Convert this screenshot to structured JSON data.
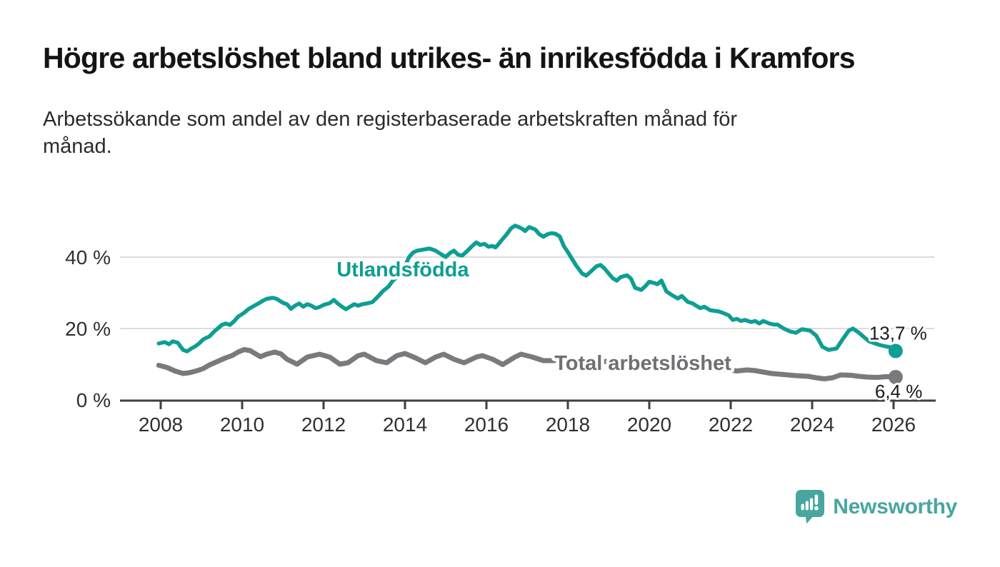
{
  "header": {
    "title": "Högre arbetslöshet bland utrikes- än inrikesfödda i Kramfors",
    "subtitle_line1": "Arbetssökande som andel av den registerbaserade arbetskraften månad för",
    "subtitle_line2": "månad."
  },
  "colors": {
    "foreign_born_line": "#0e9e93",
    "total_line": "#7a7a7e",
    "total_label": "#6f6f74",
    "end_label_text": "#1a1a1a",
    "gridline": "#dcdcdc",
    "axis": "#3f3f3f",
    "axis_text": "#303030",
    "brand_teal": "#48a69e"
  },
  "chart_data": {
    "type": "line",
    "title": "",
    "xlabel": "",
    "ylabel": "",
    "grid": "horizontal-only",
    "legend_position": "inline-labels-on-lines",
    "x_axis": {
      "range": [
        2007,
        2027
      ],
      "ticks": [
        2008,
        2010,
        2012,
        2014,
        2016,
        2018,
        2020,
        2022,
        2024,
        2026
      ],
      "tick_labels": [
        "2008",
        "2010",
        "2012",
        "2014",
        "2016",
        "2018",
        "2020",
        "2022",
        "2024",
        "2026"
      ]
    },
    "y_axis": {
      "range": [
        0,
        52
      ],
      "ticks": [
        0,
        20,
        40
      ],
      "tick_labels": [
        "0 %",
        "20 %",
        "40 %"
      ]
    },
    "series": [
      {
        "name": "Utlandsfödda",
        "color": "#0e9e93",
        "label_color": "#0e9e93",
        "label_pos": [
          2012.32,
          34.6
        ],
        "end_value": 13.7,
        "end_label": "13,7 %",
        "line_width": 5.5,
        "points": [
          [
            2007.95,
            15.8
          ],
          [
            2008.1,
            16.2
          ],
          [
            2008.2,
            15.6
          ],
          [
            2008.3,
            16.4
          ],
          [
            2008.42,
            16
          ],
          [
            2008.55,
            14
          ],
          [
            2008.65,
            13.6
          ],
          [
            2008.75,
            14.4
          ],
          [
            2008.85,
            15
          ],
          [
            2008.95,
            15.9
          ],
          [
            2009.05,
            17
          ],
          [
            2009.2,
            17.8
          ],
          [
            2009.3,
            19
          ],
          [
            2009.4,
            20
          ],
          [
            2009.5,
            21
          ],
          [
            2009.6,
            21.4
          ],
          [
            2009.7,
            21
          ],
          [
            2009.8,
            22
          ],
          [
            2009.9,
            23.3
          ],
          [
            2010.05,
            24.4
          ],
          [
            2010.15,
            25.4
          ],
          [
            2010.3,
            26.4
          ],
          [
            2010.4,
            27
          ],
          [
            2010.5,
            27.7
          ],
          [
            2010.6,
            28.3
          ],
          [
            2010.75,
            28.6
          ],
          [
            2010.85,
            28.3
          ],
          [
            2011,
            27.2
          ],
          [
            2011.1,
            26.8
          ],
          [
            2011.2,
            25.5
          ],
          [
            2011.3,
            26.4
          ],
          [
            2011.4,
            27
          ],
          [
            2011.5,
            26.1
          ],
          [
            2011.6,
            26.8
          ],
          [
            2011.7,
            26.4
          ],
          [
            2011.8,
            25.7
          ],
          [
            2011.9,
            26
          ],
          [
            2012,
            26.6
          ],
          [
            2012.15,
            27.1
          ],
          [
            2012.25,
            28
          ],
          [
            2012.35,
            27
          ],
          [
            2012.45,
            26.1
          ],
          [
            2012.55,
            25.4
          ],
          [
            2012.65,
            26.1
          ],
          [
            2012.75,
            26.8
          ],
          [
            2012.85,
            26.4
          ],
          [
            2012.95,
            26.8
          ],
          [
            2013.1,
            27.1
          ],
          [
            2013.2,
            27.4
          ],
          [
            2013.35,
            29.1
          ],
          [
            2013.45,
            30.4
          ],
          [
            2013.6,
            31.8
          ],
          [
            2013.7,
            33.4
          ],
          [
            2013.8,
            34.4
          ],
          [
            2013.9,
            35.6
          ],
          [
            2014,
            37.5
          ],
          [
            2014.1,
            40
          ],
          [
            2014.2,
            41.3
          ],
          [
            2014.3,
            41.8
          ],
          [
            2014.45,
            42.1
          ],
          [
            2014.6,
            42.4
          ],
          [
            2014.75,
            41.8
          ],
          [
            2014.9,
            40.7
          ],
          [
            2015,
            40
          ],
          [
            2015.1,
            41.1
          ],
          [
            2015.2,
            41.8
          ],
          [
            2015.3,
            40.7
          ],
          [
            2015.4,
            40.4
          ],
          [
            2015.5,
            41.4
          ],
          [
            2015.65,
            43.1
          ],
          [
            2015.75,
            44.1
          ],
          [
            2015.85,
            43.4
          ],
          [
            2015.95,
            43.7
          ],
          [
            2016.05,
            42.9
          ],
          [
            2016.15,
            43.1
          ],
          [
            2016.22,
            42.7
          ],
          [
            2016.28,
            43.4
          ],
          [
            2016.35,
            44.4
          ],
          [
            2016.5,
            46.4
          ],
          [
            2016.6,
            48
          ],
          [
            2016.7,
            48.8
          ],
          [
            2016.8,
            48.4
          ],
          [
            2016.88,
            47.9
          ],
          [
            2016.95,
            47.3
          ],
          [
            2017.05,
            48.4
          ],
          [
            2017.12,
            48.1
          ],
          [
            2017.2,
            47.7
          ],
          [
            2017.3,
            46.4
          ],
          [
            2017.4,
            45.7
          ],
          [
            2017.5,
            46.4
          ],
          [
            2017.6,
            46.7
          ],
          [
            2017.7,
            46.5
          ],
          [
            2017.8,
            45.8
          ],
          [
            2017.9,
            43.1
          ],
          [
            2018,
            41.4
          ],
          [
            2018.2,
            37.7
          ],
          [
            2018.35,
            35.4
          ],
          [
            2018.45,
            34.8
          ],
          [
            2018.55,
            35.8
          ],
          [
            2018.7,
            37.4
          ],
          [
            2018.8,
            37.8
          ],
          [
            2018.9,
            36.8
          ],
          [
            2019.1,
            34.1
          ],
          [
            2019.2,
            33.4
          ],
          [
            2019.3,
            34.4
          ],
          [
            2019.45,
            34.9
          ],
          [
            2019.55,
            34
          ],
          [
            2019.65,
            31.4
          ],
          [
            2019.8,
            30.8
          ],
          [
            2019.9,
            31.8
          ],
          [
            2020,
            33.1
          ],
          [
            2020.1,
            32.8
          ],
          [
            2020.2,
            32.4
          ],
          [
            2020.3,
            33.4
          ],
          [
            2020.42,
            30.4
          ],
          [
            2020.55,
            29.4
          ],
          [
            2020.7,
            28.4
          ],
          [
            2020.8,
            29.1
          ],
          [
            2020.95,
            27.4
          ],
          [
            2021.05,
            27.1
          ],
          [
            2021.25,
            25.7
          ],
          [
            2021.35,
            26.1
          ],
          [
            2021.5,
            25.1
          ],
          [
            2021.7,
            24.8
          ],
          [
            2021.8,
            24.4
          ],
          [
            2021.95,
            23.7
          ],
          [
            2022.05,
            22.4
          ],
          [
            2022.15,
            22.7
          ],
          [
            2022.25,
            22.1
          ],
          [
            2022.35,
            22.4
          ],
          [
            2022.5,
            21.8
          ],
          [
            2022.6,
            22.1
          ],
          [
            2022.7,
            21.4
          ],
          [
            2022.8,
            22.1
          ],
          [
            2022.95,
            21.4
          ],
          [
            2023.05,
            21.1
          ],
          [
            2023.15,
            21.1
          ],
          [
            2023.3,
            20
          ],
          [
            2023.45,
            19.2
          ],
          [
            2023.6,
            18.8
          ],
          [
            2023.75,
            19.8
          ],
          [
            2023.95,
            19.4
          ],
          [
            2024.1,
            18
          ],
          [
            2024.25,
            14.9
          ],
          [
            2024.4,
            14
          ],
          [
            2024.6,
            14.4
          ],
          [
            2024.75,
            17
          ],
          [
            2024.9,
            19.4
          ],
          [
            2025,
            20
          ],
          [
            2025.15,
            18.8
          ],
          [
            2025.25,
            17.8
          ],
          [
            2025.4,
            16.4
          ],
          [
            2025.55,
            15.8
          ],
          [
            2025.65,
            15.4
          ],
          [
            2025.8,
            15
          ],
          [
            2025.9,
            14.8
          ],
          [
            2026.05,
            13.7
          ]
        ]
      },
      {
        "name": "Total arbetslöshet",
        "color": "#7a7a7e",
        "label_color": "#6f6f74",
        "label_pos": [
          2017.67,
          8.4
        ],
        "end_value": 6.4,
        "end_label": "6,4 %",
        "line_width": 7,
        "points": [
          [
            2007.95,
            9.7
          ],
          [
            2008.15,
            9.1
          ],
          [
            2008.35,
            8.1
          ],
          [
            2008.55,
            7.4
          ],
          [
            2008.7,
            7.6
          ],
          [
            2008.9,
            8.2
          ],
          [
            2009.05,
            8.8
          ],
          [
            2009.2,
            9.8
          ],
          [
            2009.4,
            10.8
          ],
          [
            2009.6,
            11.8
          ],
          [
            2009.75,
            12.4
          ],
          [
            2009.9,
            13.4
          ],
          [
            2010.05,
            14.1
          ],
          [
            2010.2,
            13.8
          ],
          [
            2010.3,
            13.1
          ],
          [
            2010.45,
            12.1
          ],
          [
            2010.6,
            12.8
          ],
          [
            2010.8,
            13.4
          ],
          [
            2010.95,
            12.9
          ],
          [
            2011.1,
            11.4
          ],
          [
            2011.35,
            10
          ],
          [
            2011.6,
            12
          ],
          [
            2011.9,
            12.8
          ],
          [
            2012.15,
            12
          ],
          [
            2012.4,
            10
          ],
          [
            2012.6,
            10.4
          ],
          [
            2012.85,
            12.4
          ],
          [
            2013,
            12.8
          ],
          [
            2013.3,
            11
          ],
          [
            2013.55,
            10.4
          ],
          [
            2013.8,
            12.4
          ],
          [
            2014,
            13
          ],
          [
            2014.25,
            11.8
          ],
          [
            2014.5,
            10.4
          ],
          [
            2014.75,
            12
          ],
          [
            2014.95,
            12.8
          ],
          [
            2015.2,
            11.4
          ],
          [
            2015.45,
            10.4
          ],
          [
            2015.75,
            12
          ],
          [
            2015.9,
            12.4
          ],
          [
            2016.15,
            11.4
          ],
          [
            2016.4,
            9.9
          ],
          [
            2016.7,
            12
          ],
          [
            2016.85,
            12.8
          ],
          [
            2017.1,
            12.1
          ],
          [
            2017.4,
            11
          ],
          [
            2017.65,
            11
          ],
          [
            2017.9,
            11.6
          ],
          [
            2018.1,
            11
          ],
          [
            2018.4,
            10.2
          ],
          [
            2018.7,
            10.6
          ],
          [
            2019,
            10.8
          ],
          [
            2019.3,
            10.2
          ],
          [
            2019.6,
            9.8
          ],
          [
            2019.9,
            10.4
          ],
          [
            2020.2,
            10.8
          ],
          [
            2020.5,
            10.2
          ],
          [
            2020.8,
            9.8
          ],
          [
            2021.1,
            9.4
          ],
          [
            2021.4,
            8.8
          ],
          [
            2021.7,
            8.6
          ],
          [
            2021.95,
            8.4
          ],
          [
            2022.15,
            8.1
          ],
          [
            2022.4,
            8.4
          ],
          [
            2022.6,
            8.2
          ],
          [
            2022.8,
            7.8
          ],
          [
            2023,
            7.4
          ],
          [
            2023.3,
            7.1
          ],
          [
            2023.6,
            6.8
          ],
          [
            2023.9,
            6.6
          ],
          [
            2024.1,
            6.2
          ],
          [
            2024.3,
            5.9
          ],
          [
            2024.5,
            6.2
          ],
          [
            2024.7,
            7
          ],
          [
            2024.95,
            6.9
          ],
          [
            2025.15,
            6.6
          ],
          [
            2025.35,
            6.4
          ],
          [
            2025.6,
            6.3
          ],
          [
            2025.8,
            6.5
          ],
          [
            2025.95,
            6.5
          ],
          [
            2026.05,
            6.4
          ]
        ]
      }
    ]
  },
  "footer": {
    "brand": "Newsworthy",
    "brand_icon": "newsworthy-speech-bubble-chart-icon"
  }
}
